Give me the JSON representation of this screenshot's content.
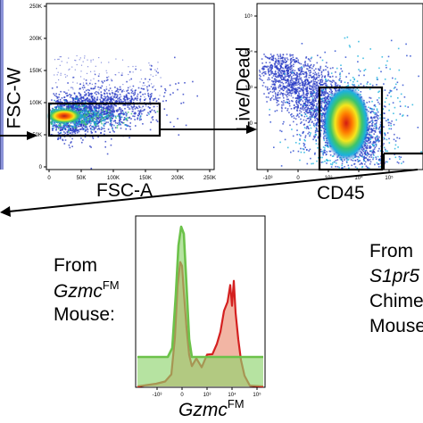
{
  "panels": {
    "fsc": {
      "xlabel": "FSC-A",
      "ylabel": "FSC-W",
      "xticks": [
        "0",
        "50K",
        "100K",
        "150K",
        "200K",
        "250K"
      ],
      "yticks": [
        "0",
        "50K",
        "100K",
        "150K",
        "200K",
        "250K"
      ]
    },
    "live": {
      "xlabel": "CD45",
      "ylabel": "Live/Dead",
      "xticks": [
        "-10³",
        "0",
        "10³",
        "10⁴",
        "10⁵"
      ],
      "yticks": [
        "10⁵",
        "10⁴",
        "10³",
        "0"
      ]
    },
    "hist": {
      "xlabel_main": "Gzmc",
      "xlabel_sup": "FM",
      "xticks": [
        "-10³",
        "0",
        "10³",
        "10⁴",
        "10⁵"
      ]
    }
  },
  "left_text": {
    "line1": "From",
    "line2_main": "Gzmc",
    "line2_sup": "FM",
    "line3": "Mouse:"
  },
  "right_text": {
    "line1": "From",
    "line2": "S1pr5",
    "line3": "Chime",
    "line4": "Mouse"
  },
  "colors": {
    "green": "#6cc24a",
    "red": "#d42020",
    "red_fill": "#f2b5a4",
    "density_high": "#e5201d",
    "density_mid": "#f5e61c",
    "density_low": "#2b3cc4"
  },
  "chart_data": [
    {
      "type": "scatter",
      "title": "",
      "xlabel": "FSC-A",
      "ylabel": "FSC-W",
      "xlim": [
        0,
        262144
      ],
      "ylim": [
        0,
        262144
      ],
      "note": "density dot plot; gate rectangle FSC-A 0–180K, FSC-W 50K–100K"
    },
    {
      "type": "scatter",
      "title": "",
      "xlabel": "CD45",
      "ylabel": "Live/Dead",
      "xscale": "biexponential",
      "yscale": "biexponential",
      "note": "density dot plot; gate on CD45+ Live/Dead low population"
    },
    {
      "type": "area",
      "title": "",
      "xlabel": "Gzmc FM",
      "xscale": "biexponential",
      "series": [
        {
          "color": "#6cc24a",
          "peaks_at": [
            "0"
          ]
        },
        {
          "color": "#d42020",
          "peaks_at": [
            "0",
            "10⁴"
          ]
        }
      ]
    }
  ]
}
